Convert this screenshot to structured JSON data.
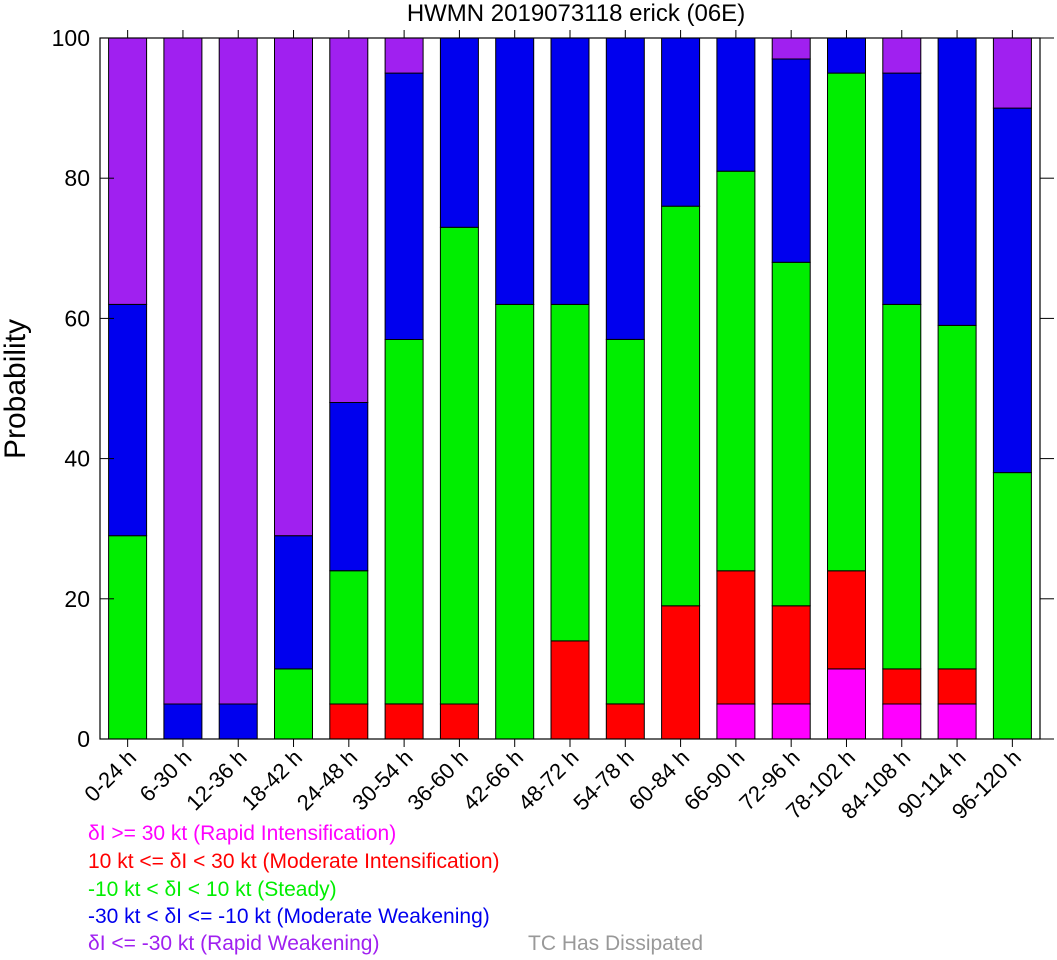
{
  "chart_data": {
    "type": "bar",
    "stacked": true,
    "title": "HWMN 2019073118 erick (06E)",
    "ylabel": "Probability",
    "xlabel": "",
    "ylim": [
      0,
      100
    ],
    "yticks": [
      "0",
      "20",
      "40",
      "60",
      "80",
      "100"
    ],
    "grid": false,
    "categories": [
      "0-24 h",
      "6-30 h",
      "12-36 h",
      "18-42 h",
      "24-48 h",
      "30-54 h",
      "36-60 h",
      "42-66 h",
      "48-72 h",
      "54-78 h",
      "60-84 h",
      "66-90 h",
      "72-96 h",
      "78-102 h",
      "84-108 h",
      "90-114 h",
      "96-120 h"
    ],
    "series": [
      {
        "key": "ri",
        "color": "#ff00ff",
        "values": [
          0,
          0,
          0,
          0,
          0,
          0,
          0,
          0,
          0,
          0,
          0,
          5,
          5,
          10,
          5,
          5,
          0
        ]
      },
      {
        "key": "mi",
        "color": "#ff0000",
        "values": [
          0,
          0,
          0,
          0,
          5,
          5,
          5,
          0,
          14,
          5,
          19,
          19,
          14,
          14,
          5,
          5,
          0
        ]
      },
      {
        "key": "steady",
        "color": "#00ee00",
        "values": [
          29,
          0,
          0,
          10,
          19,
          52,
          68,
          62,
          48,
          52,
          57,
          57,
          49,
          71,
          52,
          49,
          38
        ]
      },
      {
        "key": "mw",
        "color": "#0000ee",
        "values": [
          33,
          5,
          5,
          19,
          24,
          38,
          27,
          38,
          38,
          43,
          24,
          19,
          29,
          5,
          33,
          41,
          52
        ]
      },
      {
        "key": "rw",
        "color": "#a020f0",
        "values": [
          38,
          95,
          95,
          71,
          52,
          5,
          0,
          0,
          0,
          0,
          0,
          0,
          3,
          0,
          5,
          0,
          10
        ]
      }
    ]
  },
  "legend": [
    {
      "text": "δI >= 30 kt (Rapid Intensification)",
      "color": "#ff00ff"
    },
    {
      "text": "10 kt <= δI < 30 kt (Moderate Intensification)",
      "color": "#ff0000"
    },
    {
      "text": "-10 kt < δI < 10 kt (Steady)",
      "color": "#00ee00"
    },
    {
      "text": "-30 kt < δI <= -10 kt (Moderate Weakening)",
      "color": "#0000ee"
    },
    {
      "text": "δI <= -30 kt (Rapid Weakening)",
      "color": "#a020f0"
    }
  ],
  "dissipated_label": {
    "text": "TC Has Dissipated",
    "color": "#999999"
  }
}
